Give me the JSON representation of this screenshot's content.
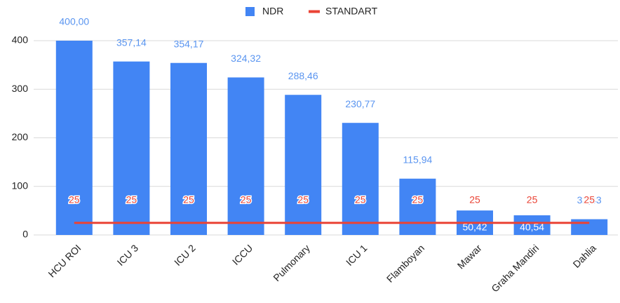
{
  "chart_data": {
    "type": "bar",
    "categories": [
      "HCU ROI",
      "ICU 3",
      "ICU 2",
      "ICCU",
      "Pulmonary",
      "ICU 1",
      "Flamboyan",
      "Mawar",
      "Graha Mandiri",
      "Dahlia"
    ],
    "series": [
      {
        "name": "NDR",
        "type": "bar",
        "color": "#4285f4",
        "values": [
          400.0,
          357.14,
          354.17,
          324.32,
          288.46,
          230.77,
          115.94,
          50.42,
          40.54,
          32.43
        ],
        "value_labels": [
          "400,00",
          "357,14",
          "354,17",
          "324,32",
          "288,46",
          "230,77",
          "115,94",
          "50,42",
          "40,54",
          "32,43"
        ]
      },
      {
        "name": "STANDART",
        "type": "line",
        "color": "#ea4335",
        "values": [
          25,
          25,
          25,
          25,
          25,
          25,
          25,
          25,
          25,
          25
        ]
      }
    ],
    "ylim": [
      0,
      400
    ],
    "yticks": [
      0,
      100,
      200,
      300,
      400
    ],
    "grid": true,
    "legend": "top"
  }
}
